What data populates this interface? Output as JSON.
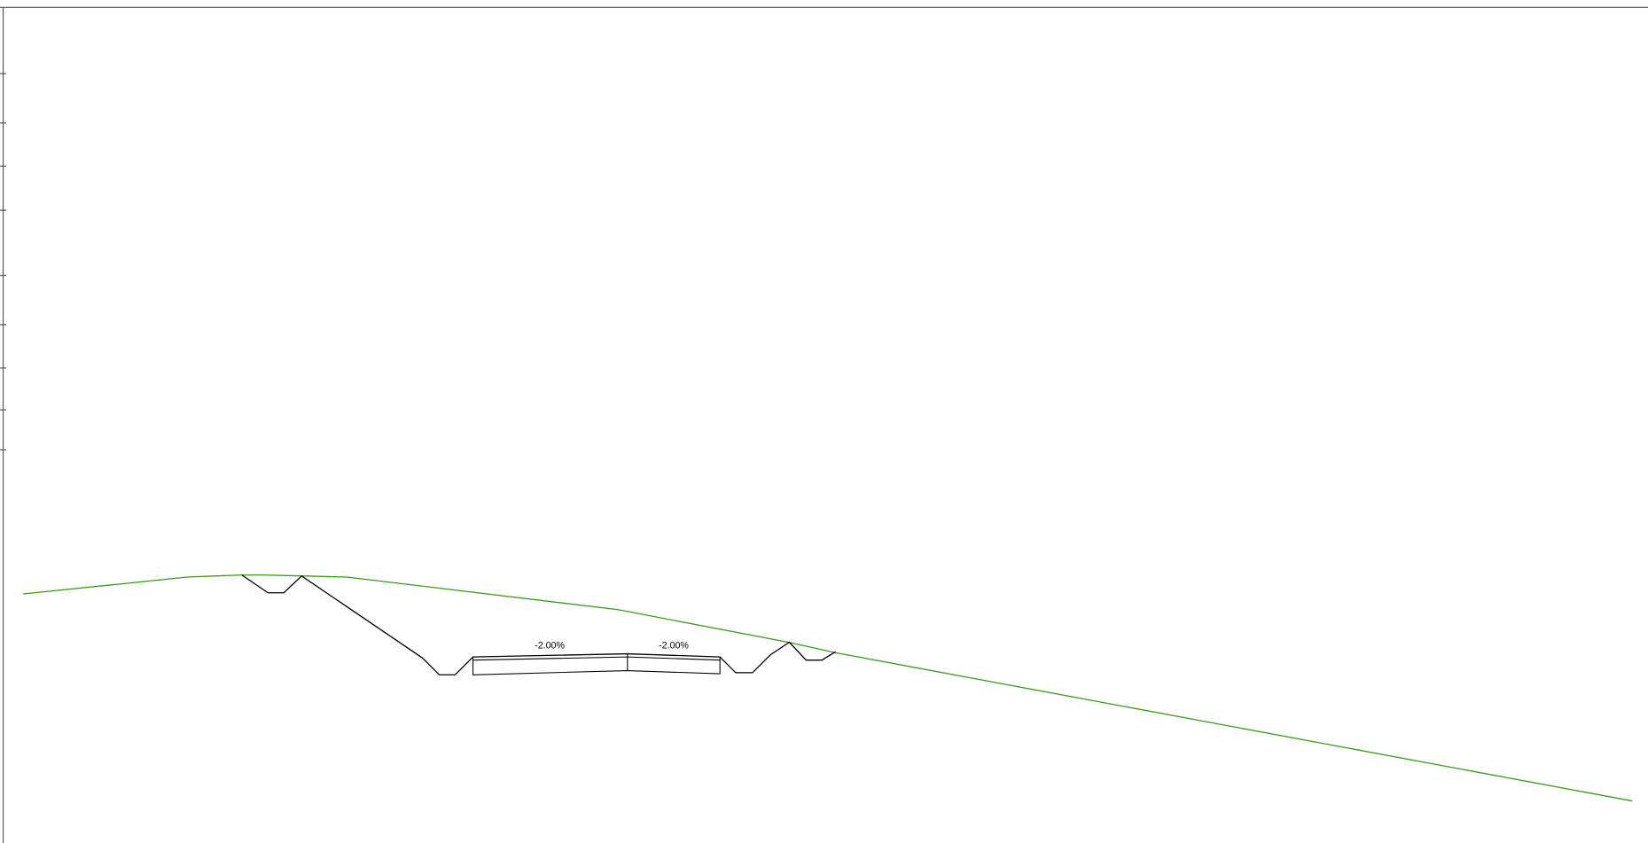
{
  "slope_labels": [
    "-2.00%",
    "-2.00%"
  ]
}
